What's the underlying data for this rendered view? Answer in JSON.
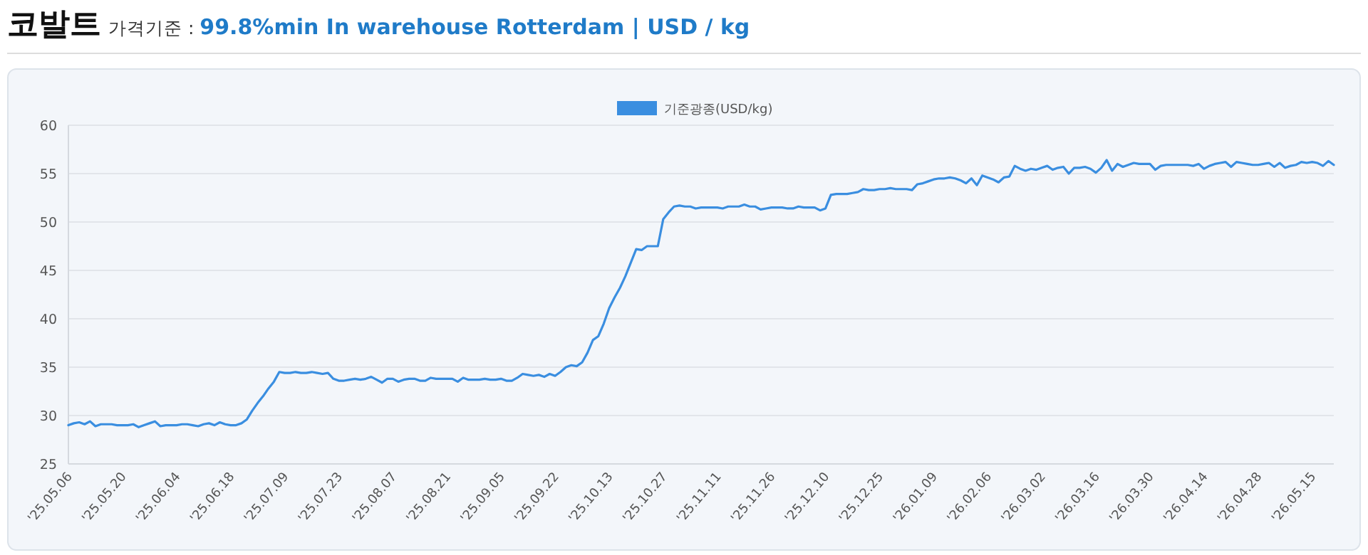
{
  "chart_data": {
    "type": "line",
    "title": "코발트",
    "subtitle": "가격기준 : **99.8%min In warehouse Rotterdam | USD / kg**",
    "categories": [
      "'25.05.06",
      null,
      null,
      null,
      null,
      null,
      null,
      null,
      null,
      null,
      "'25.05.20",
      null,
      null,
      null,
      null,
      null,
      null,
      null,
      null,
      null,
      "'25.06.04",
      null,
      null,
      null,
      null,
      null,
      null,
      null,
      null,
      null,
      "'25.06.18",
      null,
      null,
      null,
      null,
      null,
      null,
      null,
      null,
      null,
      "'25.07.09",
      null,
      null,
      null,
      null,
      null,
      null,
      null,
      null,
      null,
      "'25.07.23",
      null,
      null,
      null,
      null,
      null,
      null,
      null,
      null,
      null,
      "'25.08.07",
      null,
      null,
      null,
      null,
      null,
      null,
      null,
      null,
      null,
      "'25.08.21",
      null,
      null,
      null,
      null,
      null,
      null,
      null,
      null,
      null,
      "'25.09.05",
      null,
      null,
      null,
      null,
      null,
      null,
      null,
      null,
      null,
      "'25.09.22",
      null,
      null,
      null,
      null,
      null,
      null,
      null,
      null,
      null,
      "'25.10.13",
      null,
      null,
      null,
      null,
      null,
      null,
      null,
      null,
      null,
      "'25.10.27",
      null,
      null,
      null,
      null,
      null,
      null,
      null,
      null,
      null,
      "'25.11.11",
      null,
      null,
      null,
      null,
      null,
      null,
      null,
      null,
      null,
      "'25.11.26",
      null,
      null,
      null,
      null,
      null,
      null,
      null,
      null,
      null,
      "'25.12.10",
      null,
      null,
      null,
      null,
      null,
      null,
      null,
      null,
      null,
      "'25.12.25",
      null,
      null,
      null,
      null,
      null,
      null,
      null,
      null,
      null,
      "'26.01.09",
      null,
      null,
      null,
      null,
      null,
      null,
      null,
      null,
      null,
      "'26.02.06",
      null,
      null,
      null,
      null,
      null,
      null,
      null,
      null,
      null,
      "'26.03.02",
      null,
      null,
      null,
      null,
      null,
      null,
      null,
      null,
      null,
      "'26.03.16",
      null,
      null,
      null,
      null,
      null,
      null,
      null,
      null,
      null,
      "'26.03.30",
      null,
      null,
      null,
      null,
      null,
      null,
      null,
      null,
      null,
      "'26.04.14",
      null,
      null,
      null,
      null,
      null,
      null,
      null,
      null,
      null,
      "'26.04.28",
      null,
      null,
      null,
      null,
      null,
      null,
      null,
      null,
      null,
      "'26.05.15",
      null,
      null,
      null,
      null
    ],
    "series": [
      {
        "name": "기준광종(USD/kg)",
        "color": "#3a8ee0",
        "values": [
          29.0,
          29.2,
          29.3,
          29.1,
          29.4,
          28.9,
          29.1,
          29.1,
          29.1,
          29.0,
          29.0,
          29.0,
          29.1,
          28.8,
          29.0,
          29.2,
          29.4,
          28.9,
          29.0,
          29.0,
          29.0,
          29.1,
          29.1,
          29.0,
          28.9,
          29.1,
          29.2,
          29.0,
          29.3,
          29.1,
          29.0,
          29.0,
          29.2,
          29.6,
          30.5,
          31.3,
          32.0,
          32.8,
          33.5,
          34.5,
          34.4,
          34.4,
          34.5,
          34.4,
          34.4,
          34.5,
          34.4,
          34.3,
          34.4,
          33.8,
          33.6,
          33.6,
          33.7,
          33.8,
          33.7,
          33.8,
          34.0,
          33.7,
          33.4,
          33.8,
          33.8,
          33.5,
          33.7,
          33.8,
          33.8,
          33.6,
          33.6,
          33.9,
          33.8,
          33.8,
          33.8,
          33.8,
          33.5,
          33.9,
          33.7,
          33.7,
          33.7,
          33.8,
          33.7,
          33.7,
          33.8,
          33.6,
          33.6,
          33.9,
          34.3,
          34.2,
          34.1,
          34.2,
          34.0,
          34.3,
          34.1,
          34.5,
          35.0,
          35.2,
          35.1,
          35.5,
          36.5,
          37.8,
          38.2,
          39.5,
          41.1,
          42.2,
          43.2,
          44.4,
          45.8,
          47.2,
          47.1,
          47.5,
          47.5,
          47.5,
          50.3,
          51.0,
          51.6,
          51.7,
          51.6,
          51.6,
          51.4,
          51.5,
          51.5,
          51.5,
          51.5,
          51.4,
          51.6,
          51.6,
          51.6,
          51.8,
          51.6,
          51.6,
          51.3,
          51.4,
          51.5,
          51.5,
          51.5,
          51.4,
          51.4,
          51.6,
          51.5,
          51.5,
          51.5,
          51.2,
          51.4,
          52.8,
          52.9,
          52.9,
          52.9,
          53.0,
          53.1,
          53.4,
          53.3,
          53.3,
          53.4,
          53.4,
          53.5,
          53.4,
          53.4,
          53.4,
          53.3,
          53.9,
          54.0,
          54.2,
          54.4,
          54.5,
          54.5,
          54.6,
          54.5,
          54.3,
          54.0,
          54.5,
          53.8,
          54.8,
          54.6,
          54.4,
          54.1,
          54.6,
          54.7,
          55.8,
          55.5,
          55.3,
          55.5,
          55.4,
          55.6,
          55.8,
          55.4,
          55.6,
          55.7,
          55.0,
          55.6,
          55.6,
          55.7,
          55.5,
          55.1,
          55.6,
          56.4,
          55.3,
          56.0,
          55.7,
          55.9,
          56.1,
          56.0,
          56.0,
          56.0,
          55.4,
          55.8,
          55.9,
          55.9,
          55.9,
          55.9,
          55.9,
          55.8,
          56.0,
          55.5,
          55.8,
          56.0,
          56.1,
          56.2,
          55.7,
          56.2,
          56.1,
          56.0,
          55.9,
          55.9,
          56.0,
          56.1,
          55.7,
          56.1,
          55.6,
          55.8,
          55.9,
          56.2,
          56.1,
          56.2,
          56.1,
          55.8,
          56.3,
          55.9
        ]
      }
    ],
    "ylim": [
      25,
      60
    ],
    "yticks": [
      25,
      30,
      35,
      40,
      45,
      50,
      55,
      60
    ],
    "grid": "y",
    "legend": "top"
  }
}
